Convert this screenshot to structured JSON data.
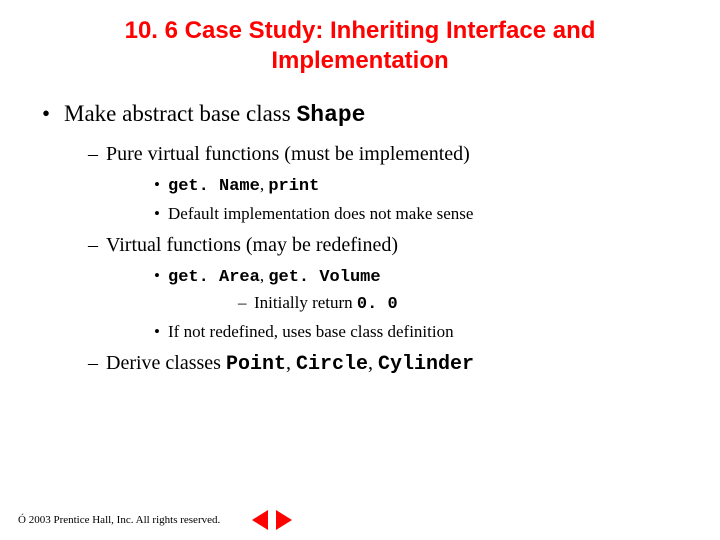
{
  "title_line1": "10. 6  Case Study: Inheriting Interface and",
  "title_line2": "Implementation",
  "b1_1_pre": "Make abstract base class ",
  "b1_1_code": "Shape",
  "b2_1": "Pure virtual functions (must be implemented)",
  "b3_1_code1": "get. Name",
  "b3_1_sep": ", ",
  "b3_1_code2": "print",
  "b3_2": "Default implementation does not make sense",
  "b2_2": "Virtual functions (may be redefined)",
  "b3_3_code1": "get. Area",
  "b3_3_sep": ", ",
  "b3_3_code2": "get. Volume",
  "b4_1_pre": "Initially return ",
  "b4_1_code": "0. 0",
  "b3_4": "If not redefined, uses base class definition",
  "b2_3_pre": "Derive classes ",
  "b2_3_code1": "Point",
  "b2_3_s1": ", ",
  "b2_3_code2": "Circle",
  "b2_3_s2": ", ",
  "b2_3_code3": "Cylinder",
  "copyright_symbol": "Ó",
  "copyright_text": " 2003 Prentice Hall, Inc. All rights reserved."
}
